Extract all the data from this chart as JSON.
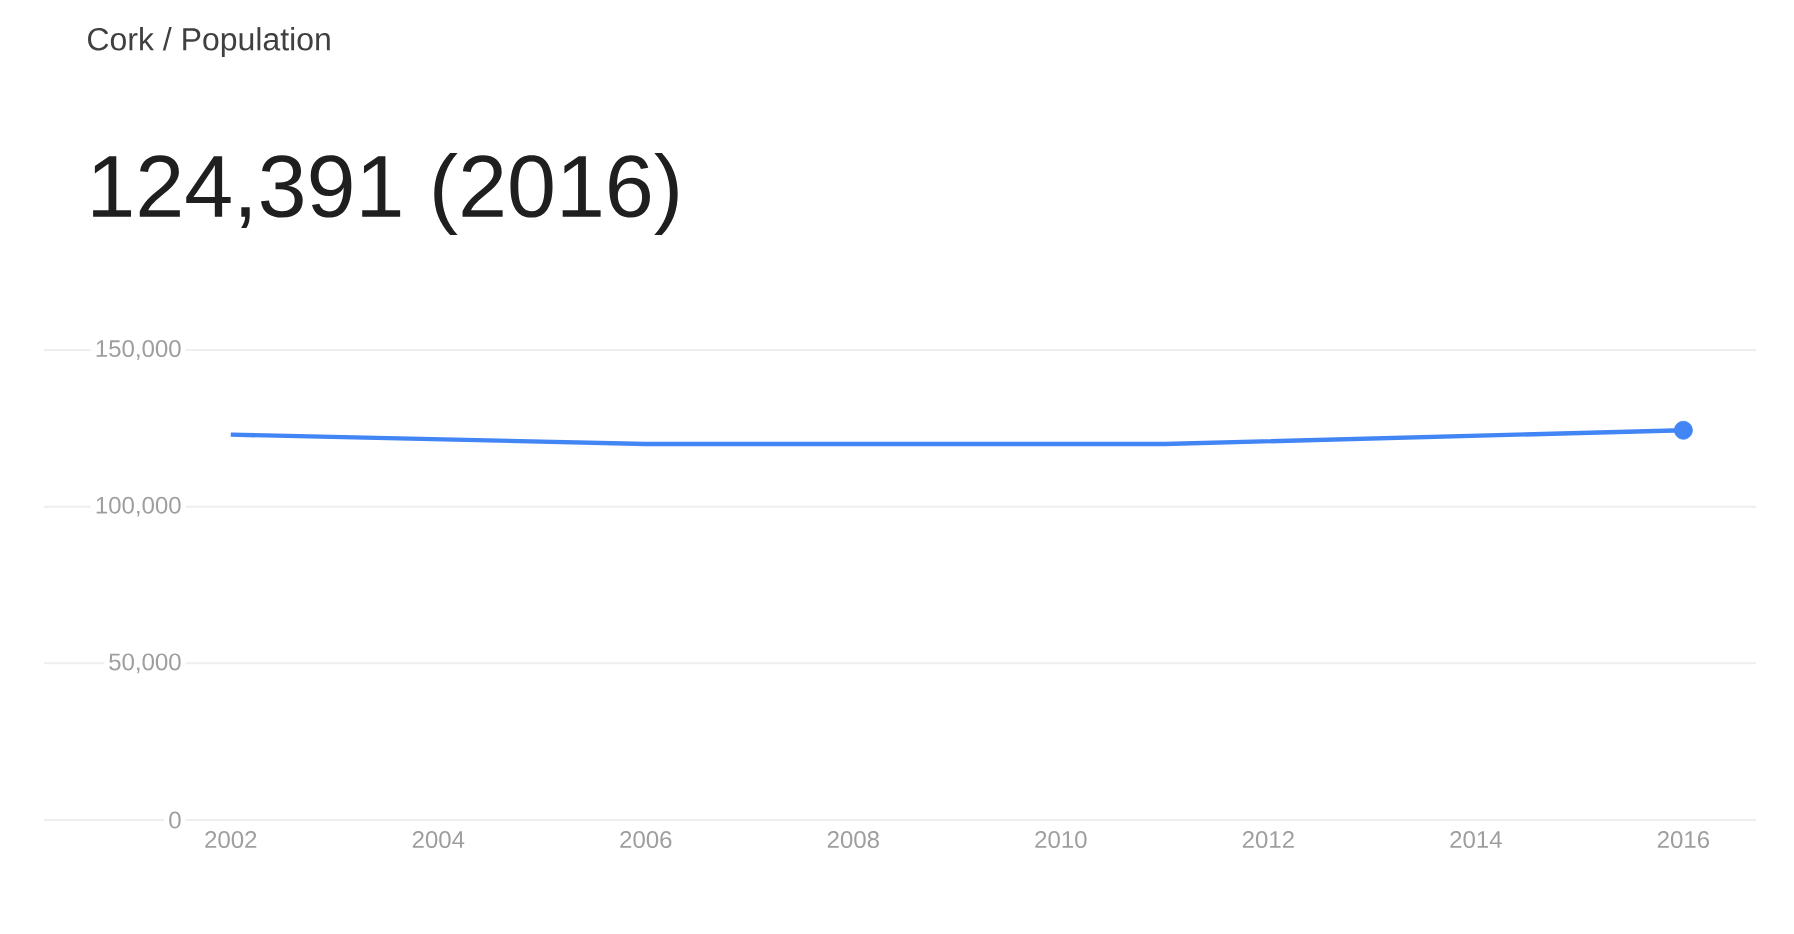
{
  "chart_data": {
    "type": "line",
    "title": "Cork / Population",
    "subtitle": "124,391 (2016)",
    "x": [
      2002,
      2006,
      2011,
      2016
    ],
    "series": [
      {
        "color": "#4285f4",
        "values": [
          123000,
          120000,
          120000,
          124391
        ]
      },
      {
        "type": "scatter",
        "color": "#4285f4",
        "x": [
          2016
        ],
        "values": [
          124391
        ],
        "marker": "circle"
      }
    ],
    "xlim": [
      2000.2,
      2016.7
    ],
    "ylim": [
      0,
      150000
    ],
    "xticks": [
      2002,
      2004,
      2006,
      2008,
      2010,
      2012,
      2014,
      2016
    ],
    "yticks": [
      {
        "value": 0,
        "label": "0"
      },
      {
        "value": 50000,
        "label": "50,000"
      },
      {
        "value": 100000,
        "label": "100,000"
      },
      {
        "value": 150000,
        "label": "150,000"
      }
    ],
    "grid": "y"
  }
}
